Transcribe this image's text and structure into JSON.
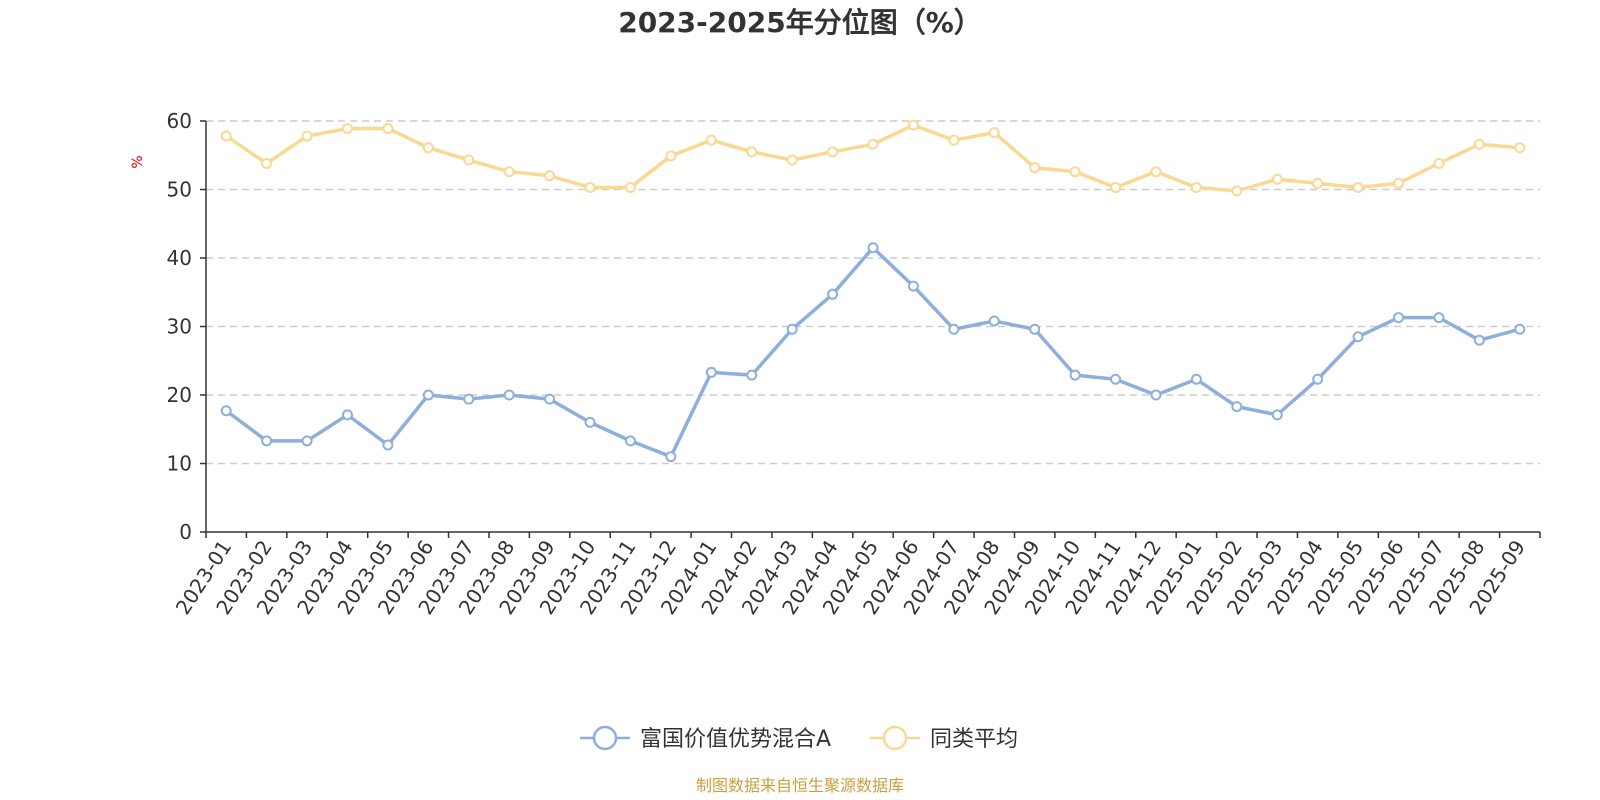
{
  "chart_data": {
    "type": "line",
    "title": "2023-2025年分位图（%）",
    "ylabel": "%",
    "ylim": [
      0,
      60
    ],
    "yticks": [
      0,
      10,
      20,
      30,
      40,
      50,
      60
    ],
    "grid": true,
    "legend_position": "bottom-center",
    "categories": [
      "2023-01",
      "2023-02",
      "2023-03",
      "2023-04",
      "2023-05",
      "2023-06",
      "2023-07",
      "2023-08",
      "2023-09",
      "2023-10",
      "2023-11",
      "2023-12",
      "2024-01",
      "2024-02",
      "2024-03",
      "2024-04",
      "2024-05",
      "2024-06",
      "2024-07",
      "2024-08",
      "2024-09",
      "2024-10",
      "2024-11",
      "2024-12",
      "2025-01",
      "2025-02",
      "2025-03",
      "2025-04",
      "2025-05",
      "2025-06",
      "2025-07",
      "2025-08",
      "2025-09"
    ],
    "series": [
      {
        "name": "富国价值优势混合A",
        "color": "#8eaedb",
        "values": [
          17.7,
          13.3,
          13.3,
          17.1,
          12.7,
          20.0,
          19.4,
          20.0,
          19.4,
          16.0,
          13.3,
          11.0,
          23.3,
          22.9,
          29.6,
          34.7,
          41.5,
          35.9,
          29.6,
          30.8,
          29.6,
          22.9,
          22.3,
          20.0,
          22.3,
          18.3,
          17.1,
          22.3,
          28.5,
          31.3,
          31.3,
          28.0,
          29.6
        ]
      },
      {
        "name": "同类平均",
        "color": "#fad892",
        "values": [
          57.8,
          53.8,
          57.8,
          58.9,
          58.9,
          56.1,
          54.3,
          52.6,
          52.0,
          50.3,
          50.3,
          54.9,
          57.2,
          55.5,
          54.3,
          55.5,
          56.6,
          59.4,
          57.2,
          58.3,
          53.2,
          52.6,
          50.3,
          52.6,
          50.3,
          49.8,
          51.5,
          50.9,
          50.3,
          50.9,
          53.8,
          56.6,
          56.1
        ]
      }
    ],
    "source_note": "制图数据来自恒生聚源数据库"
  }
}
